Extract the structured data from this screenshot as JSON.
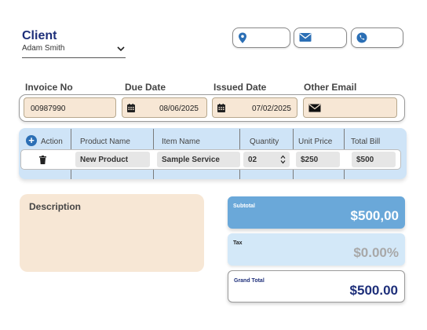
{
  "client": {
    "title": "Client",
    "selected": "Adam Smith"
  },
  "contacts": [
    {
      "icon": "location-icon"
    },
    {
      "icon": "mail-icon"
    },
    {
      "icon": "phone-icon"
    }
  ],
  "invoice": {
    "labels": {
      "invoice_no": "Invoice No",
      "due_date": "Due Date",
      "issued_date": "Issued Date",
      "other_email": "Other Email"
    },
    "invoice_no": "00987990",
    "due_date": "08/06/2025",
    "issued_date": "07/02/2025",
    "other_email": ""
  },
  "table": {
    "headers": [
      "Action",
      "Product Name",
      "Item Name",
      "Quantity",
      "Unit Price",
      "Total Bill"
    ],
    "row": {
      "product": "New Product",
      "item": "Sample Service",
      "quantity": "02",
      "unit_price": "$250",
      "total": "$500"
    }
  },
  "description": {
    "label": "Description"
  },
  "totals": {
    "subtotal_label": "Subtotal",
    "subtotal_value": "$500,00",
    "tax_label": "Tax",
    "tax_value": "$0.00%",
    "grand_label": "Grand Total",
    "grand_value": "$500.00"
  },
  "colors": {
    "navy": "#1e2f7a",
    "peach": "#f7e7d5",
    "light_blue": "#cfe4f7",
    "mid_blue": "#6aa8d9"
  }
}
